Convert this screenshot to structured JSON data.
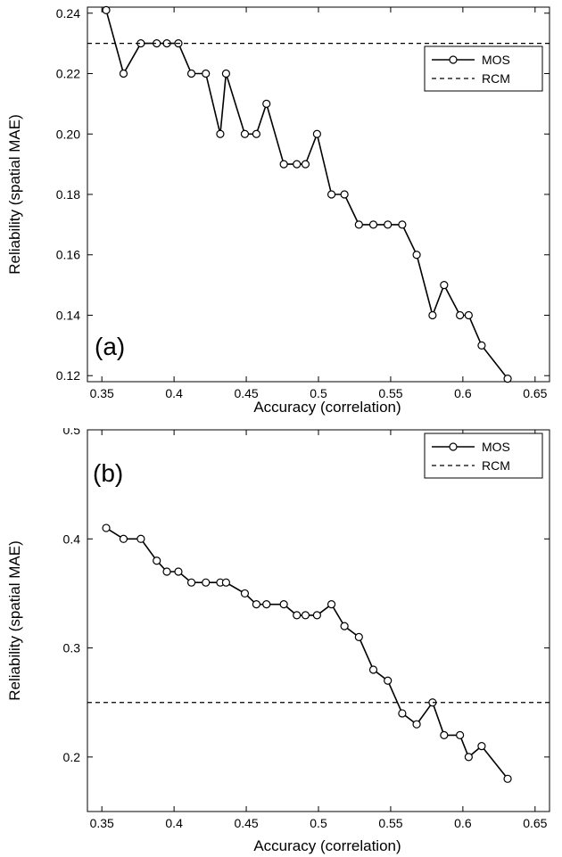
{
  "chart_data": [
    {
      "type": "line",
      "panel_label": "(a)",
      "xlabel": "Accuracy (correlation)",
      "ylabel": "Reliability (spatial MAE)",
      "xlim": [
        0.34,
        0.66
      ],
      "ylim": [
        0.118,
        0.242
      ],
      "xticks": [
        0.35,
        0.4,
        0.45,
        0.5,
        0.55,
        0.6,
        0.65
      ],
      "xtick_labels": [
        "0.35",
        "0.4",
        "0.45",
        "0.5",
        "0.55",
        "0.6",
        "0.65"
      ],
      "yticks": [
        0.12,
        0.14,
        0.16,
        0.18,
        0.2,
        0.22,
        0.24
      ],
      "ytick_labels": [
        "0.12",
        "0.14",
        "0.16",
        "0.18",
        "0.20",
        "0.22",
        "0.24"
      ],
      "legend_position": "top-right",
      "series": [
        {
          "name": "MOS",
          "style": "solid-circle-markers",
          "x": [
            0.353,
            0.365,
            0.377,
            0.388,
            0.395,
            0.403,
            0.412,
            0.422,
            0.432,
            0.436,
            0.449,
            0.457,
            0.464,
            0.476,
            0.485,
            0.491,
            0.499,
            0.509,
            0.518,
            0.528,
            0.538,
            0.548,
            0.558,
            0.568,
            0.579,
            0.587,
            0.598,
            0.604,
            0.613,
            0.631
          ],
          "y": [
            0.241,
            0.22,
            0.23,
            0.23,
            0.23,
            0.23,
            0.22,
            0.22,
            0.2,
            0.22,
            0.2,
            0.2,
            0.21,
            0.19,
            0.19,
            0.19,
            0.2,
            0.18,
            0.18,
            0.17,
            0.17,
            0.17,
            0.17,
            0.16,
            0.14,
            0.15,
            0.14,
            0.14,
            0.13,
            0.119
          ]
        },
        {
          "name": "RCM",
          "style": "dashed",
          "y_constant": 0.23
        }
      ]
    },
    {
      "type": "line",
      "panel_label": "(b)",
      "xlabel": "Accuracy (correlation)",
      "ylabel": "Reliability (spatial MAE)",
      "xlim": [
        0.34,
        0.66
      ],
      "ylim": [
        0.15,
        0.5
      ],
      "xticks": [
        0.35,
        0.4,
        0.45,
        0.5,
        0.55,
        0.6,
        0.65
      ],
      "xtick_labels": [
        "0.35",
        "0.4",
        "0.45",
        "0.5",
        "0.55",
        "0.6",
        "0.65"
      ],
      "yticks": [
        0.2,
        0.3,
        0.4,
        0.5
      ],
      "ytick_labels": [
        "0.2",
        "0.3",
        "0.4",
        "0.5"
      ],
      "legend_position": "top-right",
      "series": [
        {
          "name": "MOS",
          "style": "solid-circle-markers",
          "x": [
            0.353,
            0.365,
            0.377,
            0.388,
            0.395,
            0.403,
            0.412,
            0.422,
            0.432,
            0.436,
            0.449,
            0.457,
            0.464,
            0.476,
            0.485,
            0.491,
            0.499,
            0.509,
            0.518,
            0.528,
            0.538,
            0.548,
            0.558,
            0.568,
            0.579,
            0.587,
            0.598,
            0.604,
            0.613,
            0.631
          ],
          "y": [
            0.41,
            0.4,
            0.4,
            0.38,
            0.37,
            0.37,
            0.36,
            0.36,
            0.36,
            0.36,
            0.35,
            0.34,
            0.34,
            0.34,
            0.33,
            0.33,
            0.33,
            0.34,
            0.32,
            0.31,
            0.28,
            0.27,
            0.24,
            0.23,
            0.25,
            0.22,
            0.22,
            0.2,
            0.21,
            0.18
          ]
        },
        {
          "name": "RCM",
          "style": "dashed",
          "y_constant": 0.25
        }
      ]
    }
  ]
}
